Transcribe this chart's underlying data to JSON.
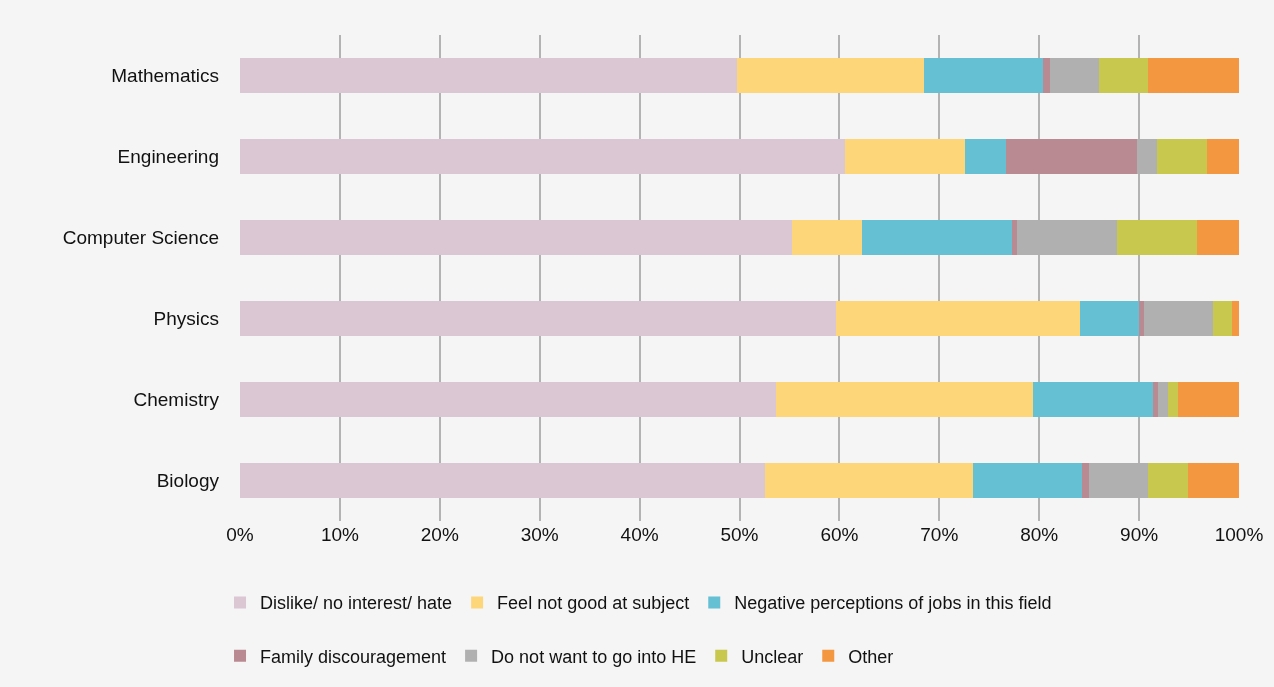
{
  "chart_data": {
    "type": "bar",
    "orientation": "horizontal",
    "stacked": true,
    "categories": [
      "Mathematics",
      "Engineering",
      "Computer Science",
      "Physics",
      "Chemistry",
      "Biology"
    ],
    "series": [
      {
        "name": "Dislike/ no interest/ hate",
        "color": "#dbc6d3",
        "values": [
          49.7,
          60.6,
          55.3,
          59.7,
          53.7,
          52.6
        ]
      },
      {
        "name": "Feel not good at subject",
        "color": "#fed67a",
        "values": [
          18.8,
          12.0,
          7.0,
          24.4,
          25.7,
          20.8
        ]
      },
      {
        "name": "Negative perceptions of jobs in this field",
        "color": "#65c0d4",
        "values": [
          11.9,
          4.1,
          15.0,
          5.9,
          12.0,
          10.9
        ]
      },
      {
        "name": "Family discouragement",
        "color": "#b98a92",
        "values": [
          0.7,
          13.1,
          0.5,
          0.5,
          0.5,
          0.7
        ]
      },
      {
        "name": "Do not want to go into HE",
        "color": "#b0b0b0",
        "values": [
          4.9,
          2.0,
          10.0,
          6.9,
          1.0,
          5.9
        ]
      },
      {
        "name": "Unclear",
        "color": "#c8c74e",
        "values": [
          4.9,
          5.0,
          8.0,
          1.9,
          1.0,
          4.0
        ]
      },
      {
        "name": "Other",
        "color": "#f39741",
        "values": [
          9.1,
          3.2,
          4.2,
          0.7,
          6.1,
          5.1
        ]
      }
    ],
    "xlim": [
      0,
      100
    ],
    "xticks": [
      {
        "value": 0,
        "label": "0%"
      },
      {
        "value": 10,
        "label": "10%"
      },
      {
        "value": 20,
        "label": "20%"
      },
      {
        "value": 30,
        "label": "30%"
      },
      {
        "value": 40,
        "label": "40%"
      },
      {
        "value": 50,
        "label": "50%"
      },
      {
        "value": 60,
        "label": "60%"
      },
      {
        "value": 70,
        "label": "70%"
      },
      {
        "value": 80,
        "label": "80%"
      },
      {
        "value": 90,
        "label": "90%"
      },
      {
        "value": 100,
        "label": "100%"
      }
    ],
    "grid": "x",
    "legend": "bottom"
  }
}
